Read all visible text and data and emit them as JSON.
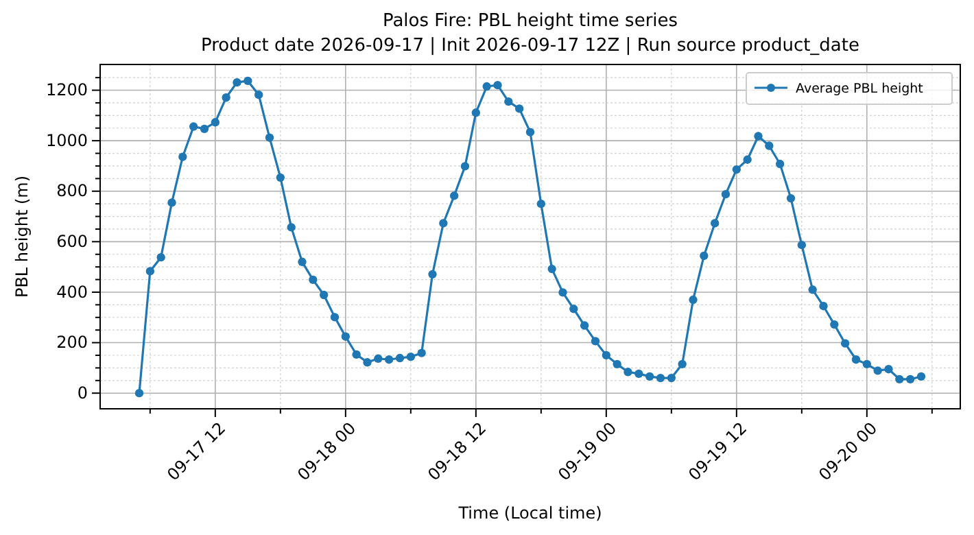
{
  "chart_data": {
    "type": "line",
    "title": "Palos Fire: PBL height time series",
    "subtitle": "Product date 2026-09-17 | Init 2026-09-17 12Z | Run source product_date",
    "xlabel": "Time (Local time)",
    "ylabel": "PBL height (m)",
    "x": [
      "2026-09-17T05:00",
      "2026-09-17T06:00",
      "2026-09-17T07:00",
      "2026-09-17T08:00",
      "2026-09-17T09:00",
      "2026-09-17T10:00",
      "2026-09-17T11:00",
      "2026-09-17T12:00",
      "2026-09-17T13:00",
      "2026-09-17T14:00",
      "2026-09-17T15:00",
      "2026-09-17T16:00",
      "2026-09-17T17:00",
      "2026-09-17T18:00",
      "2026-09-17T19:00",
      "2026-09-17T20:00",
      "2026-09-17T21:00",
      "2026-09-17T22:00",
      "2026-09-17T23:00",
      "2026-09-18T00:00",
      "2026-09-18T01:00",
      "2026-09-18T02:00",
      "2026-09-18T03:00",
      "2026-09-18T04:00",
      "2026-09-18T05:00",
      "2026-09-18T06:00",
      "2026-09-18T07:00",
      "2026-09-18T08:00",
      "2026-09-18T09:00",
      "2026-09-18T10:00",
      "2026-09-18T11:00",
      "2026-09-18T12:00",
      "2026-09-18T13:00",
      "2026-09-18T14:00",
      "2026-09-18T15:00",
      "2026-09-18T16:00",
      "2026-09-18T17:00",
      "2026-09-18T18:00",
      "2026-09-18T19:00",
      "2026-09-18T20:00",
      "2026-09-18T21:00",
      "2026-09-18T22:00",
      "2026-09-18T23:00",
      "2026-09-19T00:00",
      "2026-09-19T01:00",
      "2026-09-19T02:00",
      "2026-09-19T03:00",
      "2026-09-19T04:00",
      "2026-09-19T05:00",
      "2026-09-19T06:00",
      "2026-09-19T07:00",
      "2026-09-19T08:00",
      "2026-09-19T09:00",
      "2026-09-19T10:00",
      "2026-09-19T11:00",
      "2026-09-19T12:00",
      "2026-09-19T13:00",
      "2026-09-19T14:00",
      "2026-09-19T15:00",
      "2026-09-19T16:00",
      "2026-09-19T17:00",
      "2026-09-19T18:00",
      "2026-09-19T19:00",
      "2026-09-19T20:00",
      "2026-09-19T21:00",
      "2026-09-19T22:00",
      "2026-09-19T23:00",
      "2026-09-20T00:00",
      "2026-09-20T01:00",
      "2026-09-20T02:00",
      "2026-09-20T03:00",
      "2026-09-20T04:00",
      "2026-09-20T05:00"
    ],
    "series": [
      {
        "name": "Average PBL height",
        "color": "#1f77b4",
        "values": [
          0,
          483,
          538,
          755,
          936,
          1056,
          1047,
          1073,
          1171,
          1231,
          1237,
          1182,
          1012,
          854,
          657,
          520,
          449,
          389,
          301,
          224,
          153,
          122,
          137,
          133,
          139,
          144,
          159,
          471,
          673,
          782,
          899,
          1111,
          1215,
          1220,
          1155,
          1127,
          1034,
          750,
          492,
          399,
          334,
          268,
          206,
          150,
          115,
          84,
          77,
          66,
          60,
          60,
          115,
          370,
          544,
          673,
          788,
          886,
          925,
          1018,
          980,
          908,
          772,
          587,
          410,
          345,
          272,
          197,
          133,
          115,
          89,
          95,
          55,
          55,
          66
        ]
      }
    ],
    "xlim": [
      "2026-09-17T01:24",
      "2026-09-20T08:36"
    ],
    "xticks": [
      {
        "value": "2026-09-17T06:00",
        "label": null
      },
      {
        "value": "2026-09-17T12:00",
        "label": "09-17 12"
      },
      {
        "value": "2026-09-17T18:00",
        "label": null
      },
      {
        "value": "2026-09-18T00:00",
        "label": "09-18 00"
      },
      {
        "value": "2026-09-18T06:00",
        "label": null
      },
      {
        "value": "2026-09-18T12:00",
        "label": "09-18 12"
      },
      {
        "value": "2026-09-18T18:00",
        "label": null
      },
      {
        "value": "2026-09-19T00:00",
        "label": "09-19 00"
      },
      {
        "value": "2026-09-19T06:00",
        "label": null
      },
      {
        "value": "2026-09-19T12:00",
        "label": "09-19 12"
      },
      {
        "value": "2026-09-19T18:00",
        "label": null
      },
      {
        "value": "2026-09-20T00:00",
        "label": "09-20 00"
      },
      {
        "value": "2026-09-20T06:00",
        "label": null
      }
    ],
    "ylim": [
      -62,
      1302
    ],
    "yticks": [
      0,
      {
        "value": 50,
        "label": null
      },
      {
        "value": 100,
        "label": null
      },
      {
        "value": 150,
        "label": null
      },
      200,
      {
        "value": 250,
        "label": null
      },
      {
        "value": 300,
        "label": null
      },
      {
        "value": 350,
        "label": null
      },
      400,
      {
        "value": 450,
        "label": null
      },
      {
        "value": 500,
        "label": null
      },
      {
        "value": 550,
        "label": null
      },
      600,
      {
        "value": 650,
        "label": null
      },
      {
        "value": 700,
        "label": null
      },
      {
        "value": 750,
        "label": null
      },
      800,
      {
        "value": 850,
        "label": null
      },
      {
        "value": 900,
        "label": null
      },
      {
        "value": 950,
        "label": null
      },
      1000,
      {
        "value": 1050,
        "label": null
      },
      {
        "value": 1100,
        "label": null
      },
      {
        "value": 1150,
        "label": null
      },
      1200,
      {
        "value": 1250,
        "label": null
      }
    ],
    "grid": true,
    "legend": "top right",
    "marker": "circle",
    "line_style": "solid"
  }
}
